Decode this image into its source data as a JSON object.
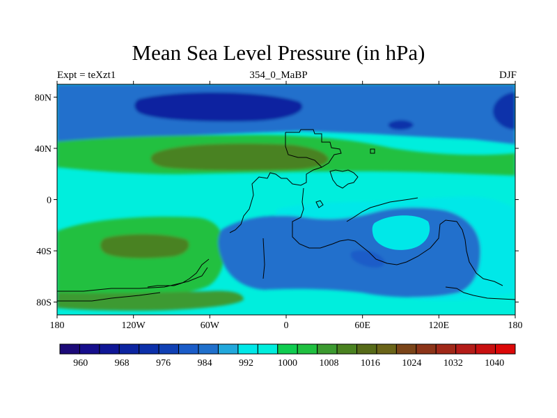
{
  "chart_data": {
    "type": "heatmap",
    "title": "Mean Sea Level Pressure (in hPa)",
    "left_label": "Expt = teXzt1",
    "center_label": "354_0_MaBP",
    "right_label": "DJF",
    "x_axis": {
      "range": [
        -180,
        180
      ],
      "ticks": [
        -180,
        -120,
        -60,
        0,
        60,
        120,
        180
      ],
      "tick_labels": [
        "180",
        "120W",
        "60W",
        "0",
        "60E",
        "120E",
        "180"
      ]
    },
    "y_axis": {
      "range": [
        -90,
        90
      ],
      "ticks": [
        80,
        40,
        0,
        -40,
        -80
      ],
      "tick_labels": [
        "80N",
        "40N",
        "0",
        "40S",
        "80S"
      ]
    },
    "colorbar": {
      "levels": [
        956,
        960,
        964,
        968,
        972,
        976,
        980,
        984,
        988,
        992,
        996,
        1000,
        1004,
        1008,
        1012,
        1016,
        1020,
        1024,
        1028,
        1032,
        1036,
        1040,
        1044
      ],
      "labels": [
        "960",
        "968",
        "976",
        "984",
        "992",
        "1000",
        "1008",
        "1016",
        "1024",
        "1032",
        "1040"
      ],
      "colors": [
        "#1c0a78",
        "#160e8c",
        "#0f1696",
        "#0c24a0",
        "#0c30aa",
        "#1040b4",
        "#1a5cc8",
        "#2070cc",
        "#22a8dc",
        "#00e8e8",
        "#00eedd",
        "#10cc50",
        "#20c040",
        "#3c9a30",
        "#4a8220",
        "#566a18",
        "#6a6418",
        "#7a4418",
        "#8c3418",
        "#a02818",
        "#b41c18",
        "#c81010",
        "#dc0808"
      ]
    },
    "regions": [
      {
        "name": "background",
        "value": 998
      },
      {
        "name": "northern-low-belt",
        "value": 984
      },
      {
        "name": "icelandic-low-core",
        "value": 971
      },
      {
        "name": "pacific-low-core",
        "value": 973
      },
      {
        "name": "pacific-low-east",
        "value": 975
      },
      {
        "name": "northern-high-belt",
        "value": 1005
      },
      {
        "name": "atlantic-high",
        "value": 1013
      },
      {
        "name": "southern-high-belt",
        "value": 1005
      },
      {
        "name": "south-atlantic-high",
        "value": 1013
      },
      {
        "name": "continental-low",
        "value": 985
      },
      {
        "name": "continental-deep-low",
        "value": 981
      },
      {
        "name": "indian-ocean-moderate",
        "value": 995
      },
      {
        "name": "southern-polar-high",
        "value": 1009
      }
    ]
  }
}
